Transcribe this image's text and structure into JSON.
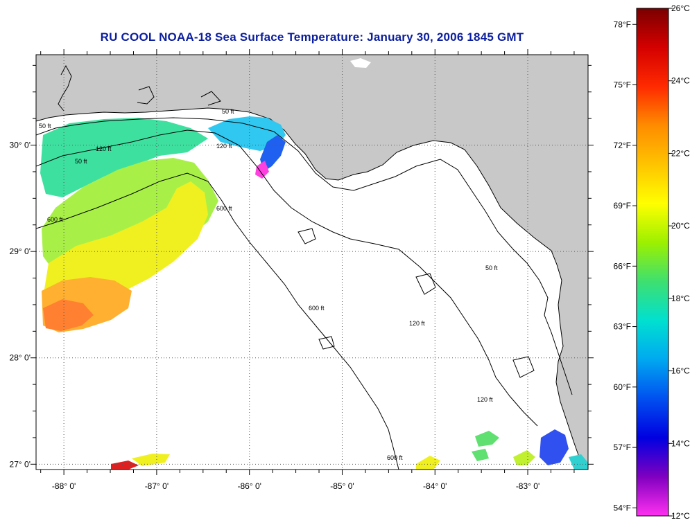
{
  "title": "RU COOL  NOAA-18  Sea Surface Temperature:  January 30, 2006 1845 GMT",
  "colors": {
    "title": "#0b1e9e",
    "land": "#c8c8c8",
    "ocean": "#ffffff",
    "grid": "#555555"
  },
  "map": {
    "lon_range": [
      -88.3,
      -82.35
    ],
    "lat_range": [
      26.95,
      30.85
    ],
    "lon_ticks": [
      {
        "value": -88,
        "label": "-88° 0'"
      },
      {
        "value": -87,
        "label": "-87° 0'"
      },
      {
        "value": -86,
        "label": "-86° 0'"
      },
      {
        "value": -85,
        "label": "-85° 0'"
      },
      {
        "value": -84,
        "label": "-84° 0'"
      },
      {
        "value": -83,
        "label": "-83° 0'"
      }
    ],
    "lat_ticks": [
      {
        "value": 30,
        "label": "30° 0'"
      },
      {
        "value": 29,
        "label": "29° 0'"
      },
      {
        "value": 28,
        "label": "28° 0'"
      },
      {
        "value": 27,
        "label": "27° 0'"
      }
    ],
    "contour_labels": [
      "50 ft",
      "120 ft",
      "600 ft"
    ]
  },
  "colorbar": {
    "celsius_ticks": [
      {
        "value": 26,
        "label": "26°C"
      },
      {
        "value": 24,
        "label": "24°C"
      },
      {
        "value": 22,
        "label": "22°C"
      },
      {
        "value": 20,
        "label": "20°C"
      },
      {
        "value": 18,
        "label": "18°C"
      },
      {
        "value": 16,
        "label": "16°C"
      },
      {
        "value": 14,
        "label": "14°C"
      },
      {
        "value": 12,
        "label": "12°C"
      }
    ],
    "fahrenheit_ticks": [
      {
        "value": 78,
        "label": "78°F"
      },
      {
        "value": 75,
        "label": "75°F"
      },
      {
        "value": 72,
        "label": "72°F"
      },
      {
        "value": 69,
        "label": "69°F"
      },
      {
        "value": 66,
        "label": "66°F"
      },
      {
        "value": 63,
        "label": "63°F"
      },
      {
        "value": 60,
        "label": "60°F"
      },
      {
        "value": 57,
        "label": "57°F"
      },
      {
        "value": 54,
        "label": "54°F"
      }
    ],
    "stops": [
      "#7a0000",
      "#d40000",
      "#ff2a00",
      "#ff8c00",
      "#ffc400",
      "#ffff00",
      "#9cf000",
      "#3de070",
      "#00e0d0",
      "#00a8f0",
      "#0050f0",
      "#0000e0",
      "#8000c0",
      "#ff30f0"
    ]
  }
}
